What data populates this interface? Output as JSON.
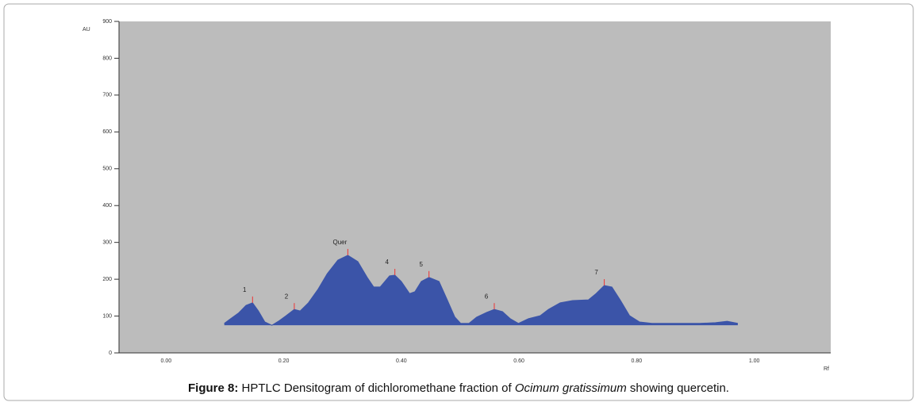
{
  "chart_data": {
    "type": "area",
    "y_label": "AU",
    "x_label": "Rf",
    "color": "#3b54a8",
    "background": "#bcbcbc",
    "ylim": [
      0,
      900
    ],
    "yticks": [
      0,
      100,
      200,
      300,
      400,
      500,
      600,
      700,
      800,
      900
    ],
    "xlim": [
      -0.08,
      1.13
    ],
    "xticks": [
      {
        "value": 0,
        "label": "0.00"
      },
      {
        "value": 0.2,
        "label": "0.20"
      },
      {
        "value": 0.4,
        "label": "0.40"
      },
      {
        "value": 0.6,
        "label": "0.60"
      },
      {
        "value": 0.8,
        "label": "0.80"
      },
      {
        "value": 1,
        "label": "1.00"
      }
    ],
    "x": [
      0.099,
      0.109,
      0.123,
      0.136,
      0.147,
      0.157,
      0.168,
      0.18,
      0.191,
      0.204,
      0.218,
      0.228,
      0.242,
      0.258,
      0.274,
      0.292,
      0.309,
      0.326,
      0.342,
      0.353,
      0.364,
      0.38,
      0.389,
      0.4,
      0.414,
      0.423,
      0.434,
      0.447,
      0.464,
      0.478,
      0.491,
      0.501,
      0.515,
      0.528,
      0.545,
      0.558,
      0.572,
      0.585,
      0.599,
      0.616,
      0.636,
      0.65,
      0.67,
      0.691,
      0.718,
      0.731,
      0.745,
      0.758,
      0.772,
      0.788,
      0.805,
      0.826,
      0.866,
      0.907,
      0.934,
      0.954,
      0.972
    ],
    "values": [
      80,
      92,
      108,
      129,
      136,
      114,
      84,
      75,
      86,
      101,
      118,
      114,
      136,
      172,
      215,
      252,
      265,
      248,
      205,
      179,
      179,
      209,
      211,
      194,
      161,
      166,
      194,
      205,
      194,
      144,
      97,
      80,
      80,
      97,
      110,
      118,
      112,
      93,
      80,
      93,
      101,
      118,
      136,
      142,
      144,
      161,
      183,
      179,
      144,
      101,
      84,
      80,
      80,
      80,
      82,
      86,
      80
    ],
    "peak_labels": [
      "1",
      "2",
      "Quer",
      "4",
      "5",
      "6",
      "7"
    ],
    "caption": {
      "label": "Figure 8:",
      "text_1": " HPTLC Densitogram of dichloromethane fraction of ",
      "species": "Ocimum gratissimum",
      "text_2": " showing quercetin."
    }
  }
}
